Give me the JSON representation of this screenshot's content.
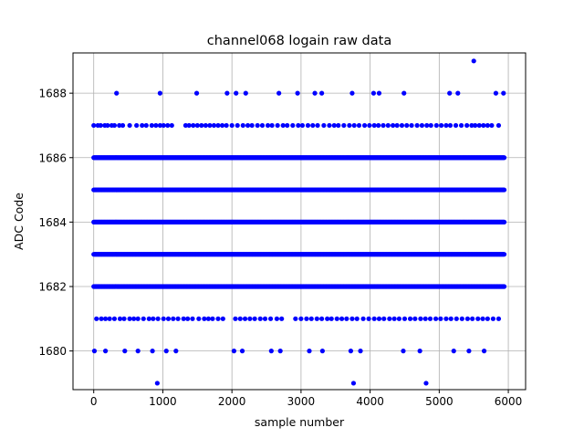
{
  "chart_data": {
    "type": "scatter",
    "title": "channel068 logain raw data",
    "xlabel": "sample number",
    "ylabel": "ADC Code",
    "xlim": [
      -300,
      6250
    ],
    "ylim": [
      1678.8,
      1689.25
    ],
    "xticks": [
      0,
      1000,
      2000,
      3000,
      4000,
      5000,
      6000
    ],
    "yticks": [
      1680,
      1682,
      1684,
      1686,
      1688
    ],
    "grid": true,
    "marker_color": "#0000ff",
    "series": [
      {
        "dense_levels": [
          1682,
          1683,
          1684,
          1685,
          1686
        ],
        "n_samples": 5950,
        "sparse_levels": {
          "1687": [
            0,
            60,
            100,
            160,
            200,
            260,
            300,
            370,
            420,
            520,
            620,
            700,
            760,
            840,
            900,
            960,
            1010,
            1070,
            1130,
            1330,
            1380,
            1440,
            1500,
            1560,
            1620,
            1680,
            1740,
            1800,
            1860,
            1920,
            2000,
            2080,
            2160,
            2230,
            2290,
            2370,
            2440,
            2520,
            2580,
            2660,
            2740,
            2800,
            2880,
            2960,
            3020,
            3100,
            3170,
            3240,
            3330,
            3410,
            3480,
            3540,
            3620,
            3700,
            3770,
            3840,
            3920,
            3990,
            4060,
            4120,
            4190,
            4260,
            4330,
            4390,
            4460,
            4530,
            4600,
            4680,
            4750,
            4820,
            4880,
            4960,
            5030,
            5100,
            5160,
            5240,
            5320,
            5400,
            5470,
            5520,
            5580,
            5640,
            5700,
            5760,
            5860
          ],
          "1681": [
            40,
            110,
            170,
            230,
            300,
            380,
            440,
            520,
            580,
            640,
            720,
            800,
            860,
            930,
            1010,
            1080,
            1150,
            1220,
            1300,
            1360,
            1430,
            1520,
            1600,
            1660,
            1720,
            1800,
            1870,
            2050,
            2120,
            2190,
            2260,
            2330,
            2410,
            2480,
            2560,
            2650,
            2720,
            2920,
            3000,
            3080,
            3150,
            3230,
            3300,
            3380,
            3440,
            3520,
            3590,
            3660,
            3740,
            3810,
            3900,
            3980,
            4060,
            4130,
            4200,
            4280,
            4350,
            4420,
            4500,
            4580,
            4650,
            4730,
            4800,
            4870,
            4950,
            5020,
            5100,
            5170,
            5250,
            5330,
            5410,
            5480,
            5560,
            5630,
            5700,
            5780,
            5860
          ],
          "1680": [
            10,
            170,
            450,
            640,
            850,
            1050,
            1190,
            2030,
            2150,
            2570,
            2700,
            3120,
            3310,
            3720,
            3860,
            4480,
            4720,
            5210,
            5430,
            5650
          ],
          "1688": [
            330,
            960,
            1490,
            1930,
            2060,
            2200,
            2680,
            2950,
            3200,
            3300,
            3740,
            4050,
            4130,
            4490,
            5150,
            5270,
            5820,
            5930
          ],
          "1679": [
            920,
            3760,
            4810
          ],
          "1689": [
            5500
          ]
        }
      }
    ]
  }
}
